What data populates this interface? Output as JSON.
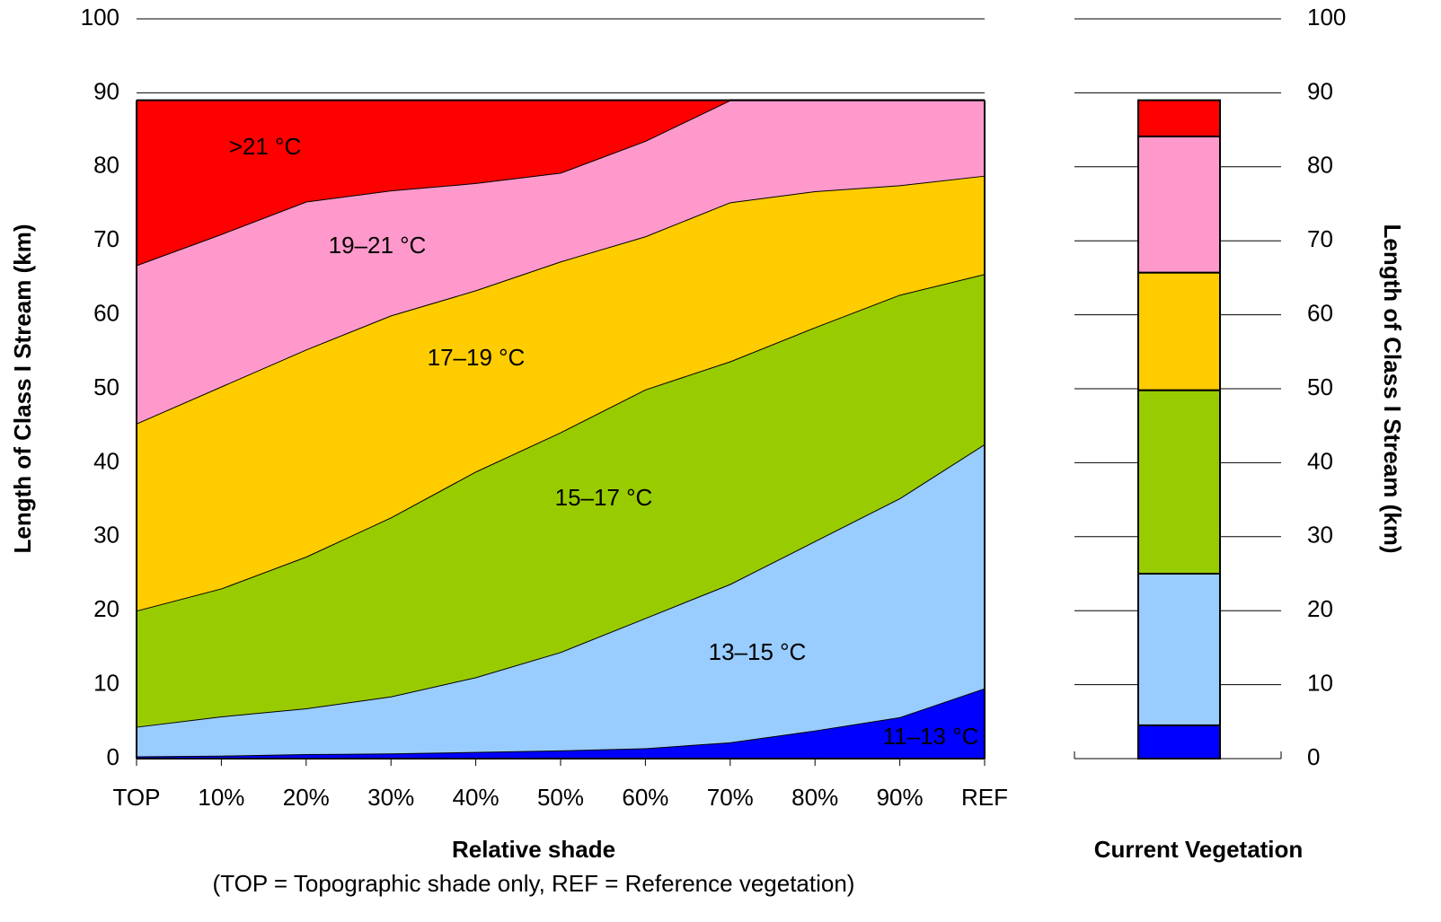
{
  "chart_data": [
    {
      "type": "area",
      "stacked": true,
      "x_label": "Relative shade",
      "note": "(TOP = Topographic shade only, REF = Reference vegetation)",
      "y_label": "Length of Class I Stream (km)",
      "categories": [
        "TOP",
        "10%",
        "20%",
        "30%",
        "40%",
        "50%",
        "60%",
        "70%",
        "80%",
        "90%",
        "REF"
      ],
      "series": [
        {
          "name": "11–13 °C",
          "color": "#0000ff",
          "values": [
            0.3,
            0.4,
            0.6,
            0.7,
            0.9,
            1.1,
            1.4,
            2.2,
            3.8,
            5.6,
            9.5
          ]
        },
        {
          "name": "13–15 °C",
          "color": "#99ccff",
          "values": [
            4.0,
            5.3,
            6.2,
            7.7,
            10.1,
            13.3,
            17.6,
            21.4,
            25.6,
            29.6,
            33.0
          ]
        },
        {
          "name": "15–17 °C",
          "color": "#99cc00",
          "values": [
            15.7,
            17.3,
            20.5,
            24.2,
            27.8,
            29.7,
            30.9,
            30.1,
            28.9,
            27.5,
            23.0
          ]
        },
        {
          "name": "17–19 °C",
          "color": "#ffcc00",
          "values": [
            25.3,
            27.3,
            28.0,
            27.3,
            24.5,
            23.1,
            20.7,
            21.5,
            18.4,
            14.8,
            13.3
          ]
        },
        {
          "name": "19–21 °C",
          "color": "#ff99cc",
          "values": [
            21.4,
            20.6,
            20.0,
            16.9,
            14.5,
            12.0,
            12.9,
            13.8,
            12.3,
            11.5,
            10.2
          ]
        },
        {
          "name": ">21 °C",
          "color": "#ff0000",
          "values": [
            22.3,
            18.1,
            13.7,
            12.2,
            11.2,
            9.8,
            5.5,
            0,
            0,
            0,
            0
          ]
        }
      ],
      "ylim": [
        0,
        100
      ],
      "yticks": [
        0,
        10,
        20,
        30,
        40,
        50,
        60,
        70,
        80,
        90,
        100
      ],
      "grid": true
    },
    {
      "type": "bar",
      "stacked": true,
      "x_label": "Current Vegetation",
      "y_label": "Length of Class I Stream (km)",
      "series": [
        {
          "color": "#0000ff",
          "values": [
            4.5
          ]
        },
        {
          "color": "#99ccff",
          "values": [
            20.5
          ]
        },
        {
          "color": "#99cc00",
          "values": [
            24.8
          ]
        },
        {
          "color": "#ffcc00",
          "values": [
            15.9
          ]
        },
        {
          "color": "#ff99cc",
          "values": [
            18.4
          ]
        },
        {
          "color": "#ff0000",
          "values": [
            4.9
          ]
        }
      ],
      "ylim": [
        0,
        100
      ],
      "yticks": [
        0,
        10,
        20,
        30,
        40,
        50,
        60,
        70,
        80,
        90,
        100
      ],
      "grid": true
    }
  ]
}
